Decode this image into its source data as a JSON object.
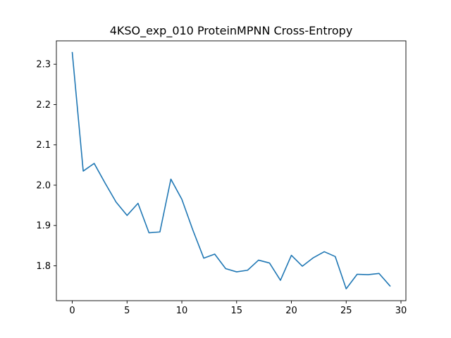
{
  "chart_data": {
    "type": "line",
    "title": "4KSO_exp_010 ProteinMPNN Cross-Entropy",
    "xlabel": "",
    "ylabel": "",
    "xlim": [
      -1.45,
      30.45
    ],
    "ylim": [
      1.7135,
      2.358
    ],
    "xticks": [
      0,
      5,
      10,
      15,
      20,
      25,
      30
    ],
    "yticks": [
      1.8,
      1.9,
      2.0,
      2.1,
      2.2,
      2.3
    ],
    "ytick_labels": [
      "1.8",
      "1.9",
      "2.0",
      "2.1",
      "2.2",
      "2.3"
    ],
    "grid": false,
    "line_color": "#1f77b4",
    "series": [
      {
        "x": [
          0,
          1,
          2,
          3,
          4,
          5,
          6,
          7,
          8,
          9,
          10,
          11,
          12,
          13,
          14,
          15,
          16,
          17,
          18,
          19,
          20,
          21,
          22,
          23,
          24,
          25,
          26,
          27,
          28,
          29
        ],
        "values": [
          2.329,
          2.035,
          2.054,
          2.005,
          1.958,
          1.925,
          1.955,
          1.882,
          1.884,
          2.015,
          1.965,
          1.889,
          1.819,
          1.829,
          1.793,
          1.785,
          1.789,
          1.814,
          1.807,
          1.764,
          1.826,
          1.799,
          1.82,
          1.835,
          1.823,
          1.743,
          1.779,
          1.778,
          1.781,
          1.75
        ]
      }
    ]
  }
}
